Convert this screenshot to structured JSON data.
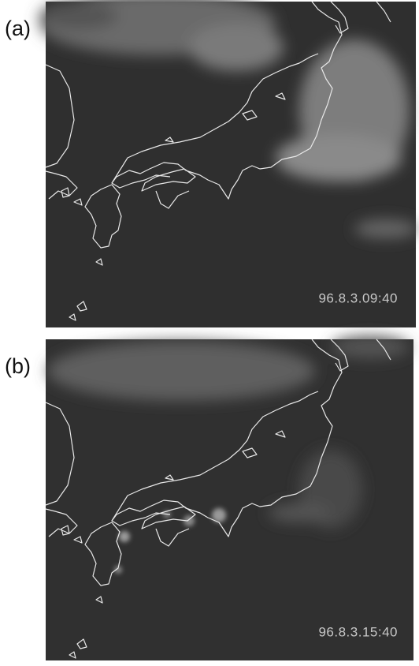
{
  "panels": [
    {
      "label": "(a)",
      "timestamp": "96.8.3.09:40"
    },
    {
      "label": "(b)",
      "timestamp": "96.8.3.15:40"
    }
  ]
}
